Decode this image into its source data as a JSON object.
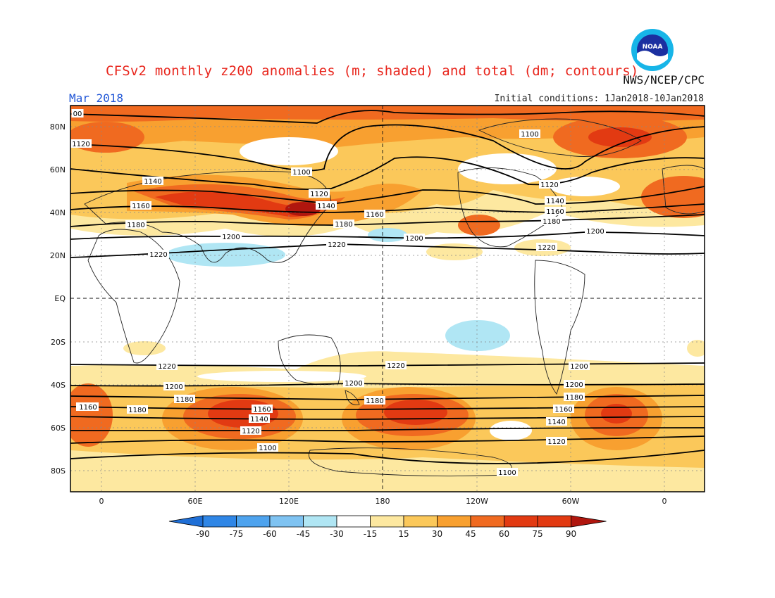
{
  "header": {
    "title": "CFSv2 monthly z200 anomalies (m; shaded) and total (dm; contours)",
    "agency": "NWS/NCEP/CPC",
    "month": "Mar 2018",
    "initial_conditions": "Initial conditions: 1Jan2018-10Jan2018",
    "logo_text": "NOAA"
  },
  "map": {
    "lat_labels": [
      "80N",
      "60N",
      "40N",
      "20N",
      "EQ",
      "20S",
      "40S",
      "60S",
      "80S"
    ],
    "lon_labels": [
      "0",
      "60E",
      "120E",
      "180",
      "120W",
      "60W",
      "0"
    ],
    "contour_labels": [
      {
        "text": "00"
      },
      {
        "text": "1120"
      },
      {
        "text": "1140"
      },
      {
        "text": "1160"
      },
      {
        "text": "1180"
      },
      {
        "text": "1200"
      },
      {
        "text": "1220"
      },
      {
        "text": "1100"
      },
      {
        "text": "1120"
      },
      {
        "text": "1140"
      },
      {
        "text": "1160"
      },
      {
        "text": "1180"
      },
      {
        "text": "1200"
      },
      {
        "text": "1220"
      },
      {
        "text": "1100"
      },
      {
        "text": "1120"
      },
      {
        "text": "1140"
      },
      {
        "text": "1160"
      },
      {
        "text": "1180"
      },
      {
        "text": "1200"
      },
      {
        "text": "1220"
      },
      {
        "text": "1160"
      },
      {
        "text": "1140"
      },
      {
        "text": "1160"
      },
      {
        "text": "1120"
      },
      {
        "text": "1100"
      },
      {
        "text": "1180"
      },
      {
        "text": "1200"
      },
      {
        "text": "1220"
      },
      {
        "text": "1180"
      },
      {
        "text": "1220"
      },
      {
        "text": "1200"
      },
      {
        "text": "1180"
      },
      {
        "text": "1160"
      },
      {
        "text": "1140"
      },
      {
        "text": "1120"
      },
      {
        "text": "1100"
      },
      {
        "text": "1200"
      },
      {
        "text": "1200"
      },
      {
        "text": "1160"
      },
      {
        "text": "1180"
      }
    ]
  },
  "colorbar": {
    "labels": [
      "-90",
      "-75",
      "-60",
      "-45",
      "-30",
      "-15",
      "15",
      "30",
      "45",
      "60",
      "75",
      "90"
    ],
    "colors": [
      "#1f6fd6",
      "#2f86e6",
      "#4ea3ee",
      "#7fc3f2",
      "#b0e6f4",
      "#ffffff",
      "#fde8a0",
      "#fbc85a",
      "#f8a030",
      "#f06a20",
      "#e23a12",
      "#b0160e"
    ]
  }
}
